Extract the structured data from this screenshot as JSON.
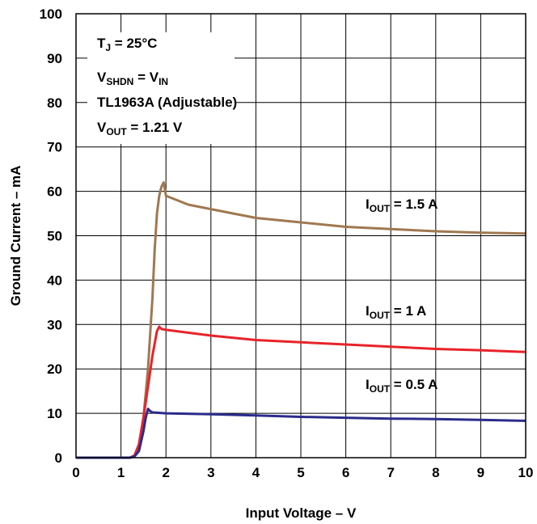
{
  "chart_data": {
    "type": "line",
    "title": "",
    "xlabel": "Input Voltage – V",
    "ylabel": "Ground Current – mA",
    "xlim": [
      0,
      10
    ],
    "ylim": [
      0,
      100
    ],
    "xticks": [
      "0",
      "1",
      "2",
      "3",
      "4",
      "5",
      "6",
      "7",
      "8",
      "9",
      "10"
    ],
    "yticks": [
      "0",
      "10",
      "20",
      "30",
      "40",
      "50",
      "60",
      "70",
      "80",
      "90",
      "100"
    ],
    "grid": true,
    "conditions": [
      {
        "main": "T",
        "sub": "J",
        "rest": " = 25°C"
      },
      {
        "main": "V",
        "sub": "SHDN",
        "rest": " = V",
        "sub2": "IN"
      },
      {
        "main": "TL1963A (Adjustable)",
        "sub": "",
        "rest": ""
      },
      {
        "main": "V",
        "sub": "OUT",
        "rest": " = 1.21 V"
      }
    ],
    "series": [
      {
        "name": "I_OUT = 1.5 A",
        "label_main": "I",
        "label_sub": "OUT",
        "label_rest": " = 1.5 A",
        "color": "#a07850",
        "x": [
          0,
          1.0,
          1.2,
          1.3,
          1.4,
          1.5,
          1.6,
          1.7,
          1.75,
          1.8,
          1.85,
          1.9,
          1.95,
          2.0,
          2.5,
          3,
          4,
          5,
          6,
          7,
          8,
          9,
          10
        ],
        "y": [
          0,
          0,
          0,
          0.5,
          3,
          9,
          20,
          36,
          47,
          55,
          59,
          61,
          62,
          59,
          57,
          56,
          54,
          53,
          52,
          51.5,
          51,
          50.7,
          50.5
        ]
      },
      {
        "name": "I_OUT = 1 A",
        "label_main": "I",
        "label_sub": "OUT",
        "label_rest": " = 1 A",
        "color": "#e8232a",
        "x": [
          0,
          1.0,
          1.2,
          1.3,
          1.4,
          1.5,
          1.6,
          1.7,
          1.8,
          1.85,
          1.9,
          2.0,
          3,
          4,
          5,
          6,
          7,
          8,
          9,
          10
        ],
        "y": [
          0,
          0,
          0,
          0.5,
          3,
          9,
          16,
          23,
          28.5,
          29.5,
          29,
          28.8,
          27.5,
          26.5,
          26,
          25.5,
          25,
          24.5,
          24.2,
          23.8
        ]
      },
      {
        "name": "I_OUT = 0.5 A",
        "label_main": "I",
        "label_sub": "OUT",
        "label_rest": " = 0.5 A",
        "color": "#2b2b8c",
        "x": [
          0,
          1.0,
          1.2,
          1.3,
          1.4,
          1.5,
          1.55,
          1.6,
          1.65,
          1.7,
          2.0,
          3,
          4,
          5,
          6,
          7,
          8,
          9,
          10
        ],
        "y": [
          0,
          0,
          0,
          0.3,
          1.5,
          6,
          9,
          11,
          10.5,
          10.2,
          10,
          9.8,
          9.5,
          9.2,
          9,
          8.8,
          8.7,
          8.5,
          8.3
        ]
      }
    ]
  }
}
